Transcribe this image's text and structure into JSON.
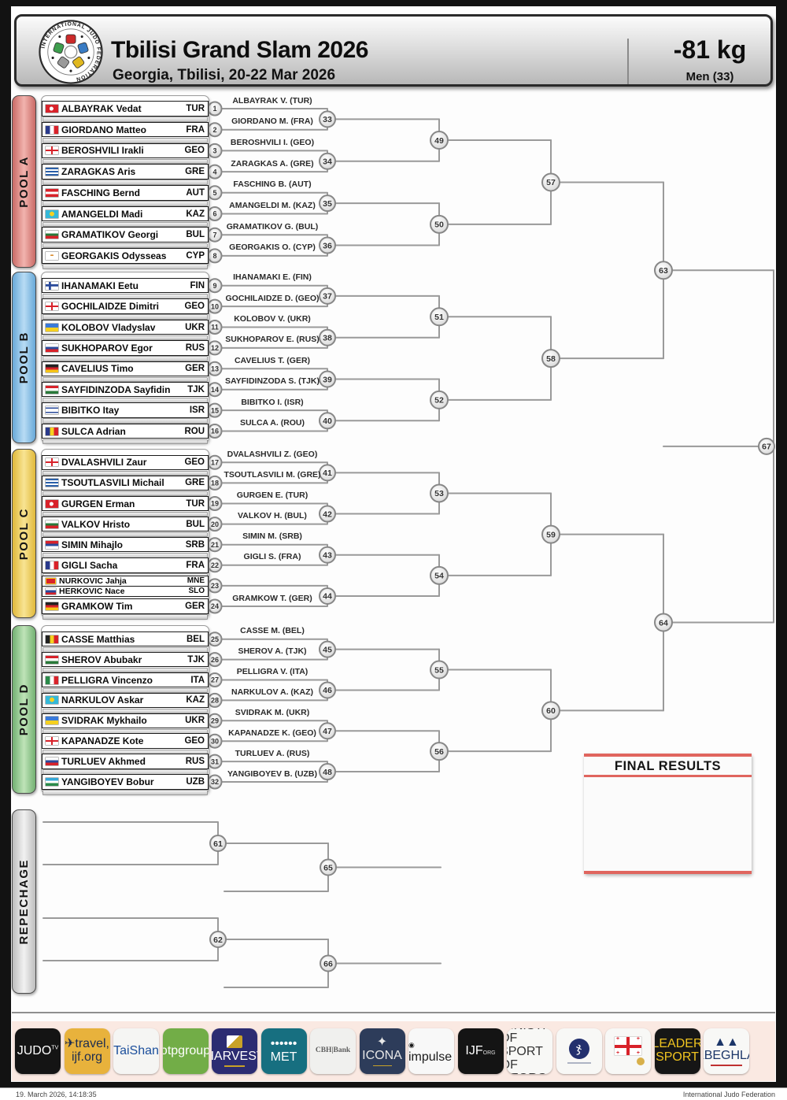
{
  "header": {
    "title": "Tbilisi Grand Slam 2026",
    "subtitle": "Georgia, Tbilisi, 20-22 Mar 2026",
    "weight": "-81 kg",
    "category": "Men (33)",
    "logo_text": "INTERNATIONAL  JUDO  FEDERATION"
  },
  "pools": [
    {
      "id": "A",
      "label": "POOL A",
      "color": "#c96a66",
      "color_light": "#f2b3ae",
      "entries": [
        {
          "seed": 1,
          "athletes": [
            {
              "name": "ALBAYRAK Vedat",
              "country": "TUR"
            }
          ],
          "winner_label": "ALBAYRAK V. (TUR)"
        },
        {
          "seed": 2,
          "athletes": [
            {
              "name": "GIORDANO Matteo",
              "country": "FRA"
            }
          ],
          "winner_label": "GIORDANO M. (FRA)"
        },
        {
          "seed": 3,
          "athletes": [
            {
              "name": "BEROSHVILI Irakli",
              "country": "GEO"
            }
          ],
          "winner_label": "BEROSHVILI I. (GEO)"
        },
        {
          "seed": 4,
          "athletes": [
            {
              "name": "ZARAGKAS Aris",
              "country": "GRE"
            }
          ],
          "winner_label": "ZARAGKAS A. (GRE)"
        },
        {
          "seed": 5,
          "athletes": [
            {
              "name": "FASCHING Bernd",
              "country": "AUT"
            }
          ],
          "winner_label": "FASCHING B. (AUT)"
        },
        {
          "seed": 6,
          "athletes": [
            {
              "name": "AMANGELDI Madi",
              "country": "KAZ"
            }
          ],
          "winner_label": "AMANGELDI M. (KAZ)"
        },
        {
          "seed": 7,
          "athletes": [
            {
              "name": "GRAMATIKOV Georgi",
              "country": "BUL"
            }
          ],
          "winner_label": "GRAMATIKOV G. (BUL)"
        },
        {
          "seed": 8,
          "athletes": [
            {
              "name": "GEORGAKIS Odysseas",
              "country": "CYP"
            }
          ],
          "winner_label": "GEORGAKIS O. (CYP)"
        }
      ]
    },
    {
      "id": "B",
      "label": "POOL B",
      "color": "#68a8d8",
      "color_light": "#b8dcf4",
      "entries": [
        {
          "seed": 9,
          "athletes": [
            {
              "name": "IHANAMAKI Eetu",
              "country": "FIN"
            }
          ],
          "winner_label": "IHANAMAKI E. (FIN)"
        },
        {
          "seed": 10,
          "athletes": [
            {
              "name": "GOCHILAIDZE Dimitri",
              "country": "GEO"
            }
          ],
          "winner_label": "GOCHILAIDZE D. (GEO)"
        },
        {
          "seed": 11,
          "athletes": [
            {
              "name": "KOLOBOV Vladyslav",
              "country": "UKR"
            }
          ],
          "winner_label": "KOLOBOV V. (UKR)"
        },
        {
          "seed": 12,
          "athletes": [
            {
              "name": "SUKHOPAROV Egor",
              "country": "RUS"
            }
          ],
          "winner_label": "SUKHOPAROV E. (RUS)"
        },
        {
          "seed": 13,
          "athletes": [
            {
              "name": "CAVELIUS Timo",
              "country": "GER"
            }
          ],
          "winner_label": "CAVELIUS T. (GER)"
        },
        {
          "seed": 14,
          "athletes": [
            {
              "name": "SAYFIDINZODA Sayfidin",
              "country": "TJK"
            }
          ],
          "winner_label": "SAYFIDINZODA S. (TJK)"
        },
        {
          "seed": 15,
          "athletes": [
            {
              "name": "BIBITKO Itay",
              "country": "ISR"
            }
          ],
          "winner_label": "BIBITKO I. (ISR)"
        },
        {
          "seed": 16,
          "athletes": [
            {
              "name": "SULCA Adrian",
              "country": "ROU"
            }
          ],
          "winner_label": "SULCA A. (ROU)"
        }
      ]
    },
    {
      "id": "C",
      "label": "POOL C",
      "color": "#e0b83a",
      "color_light": "#f8e493",
      "entries": [
        {
          "seed": 17,
          "athletes": [
            {
              "name": "DVALASHVILI Zaur",
              "country": "GEO"
            }
          ],
          "winner_label": "DVALASHVILI Z. (GEO)"
        },
        {
          "seed": 18,
          "athletes": [
            {
              "name": "TSOUTLASVILI Michail",
              "country": "GRE"
            }
          ],
          "winner_label": "TSOUTLASVILI M. (GRE)"
        },
        {
          "seed": 19,
          "athletes": [
            {
              "name": "GURGEN Erman",
              "country": "TUR"
            }
          ],
          "winner_label": "GURGEN E. (TUR)"
        },
        {
          "seed": 20,
          "athletes": [
            {
              "name": "VALKOV Hristo",
              "country": "BUL"
            }
          ],
          "winner_label": "VALKOV H. (BUL)"
        },
        {
          "seed": 21,
          "athletes": [
            {
              "name": "SIMIN Mihajlo",
              "country": "SRB"
            }
          ],
          "winner_label": "SIMIN M. (SRB)"
        },
        {
          "seed": 22,
          "athletes": [
            {
              "name": "GIGLI Sacha",
              "country": "FRA"
            }
          ],
          "winner_label": "GIGLI S. (FRA)"
        },
        {
          "seed": 23,
          "athletes": [
            {
              "name": "NURKOVIC Jahja",
              "country": "MNE"
            },
            {
              "name": "HERKOVIC Nace",
              "country": "SLO"
            }
          ],
          "winner_label": ""
        },
        {
          "seed": 24,
          "athletes": [
            {
              "name": "GRAMKOW Tim",
              "country": "GER"
            }
          ],
          "winner_label": "GRAMKOW T. (GER)"
        }
      ]
    },
    {
      "id": "D",
      "label": "POOL D",
      "color": "#72b072",
      "color_light": "#bfe4b8",
      "entries": [
        {
          "seed": 25,
          "athletes": [
            {
              "name": "CASSE Matthias",
              "country": "BEL"
            }
          ],
          "winner_label": "CASSE M. (BEL)"
        },
        {
          "seed": 26,
          "athletes": [
            {
              "name": "SHEROV Abubakr",
              "country": "TJK"
            }
          ],
          "winner_label": "SHEROV A. (TJK)"
        },
        {
          "seed": 27,
          "athletes": [
            {
              "name": "PELLIGRA Vincenzo",
              "country": "ITA"
            }
          ],
          "winner_label": "PELLIGRA V. (ITA)"
        },
        {
          "seed": 28,
          "athletes": [
            {
              "name": "NARKULOV Askar",
              "country": "KAZ"
            }
          ],
          "winner_label": "NARKULOV A. (KAZ)"
        },
        {
          "seed": 29,
          "athletes": [
            {
              "name": "SVIDRAK Mykhailo",
              "country": "UKR"
            }
          ],
          "winner_label": "SVIDRAK M. (UKR)"
        },
        {
          "seed": 30,
          "athletes": [
            {
              "name": "KAPANADZE Kote",
              "country": "GEO"
            }
          ],
          "winner_label": "KAPANADZE K. (GEO)"
        },
        {
          "seed": 31,
          "athletes": [
            {
              "name": "TURLUEV Akhmed",
              "country": "RUS"
            }
          ],
          "winner_label": "TURLUEV A. (RUS)"
        },
        {
          "seed": 32,
          "athletes": [
            {
              "name": "YANGIBOYEV Bobur",
              "country": "UZB"
            }
          ],
          "winner_label": "YANGIBOYEV B. (UZB)"
        }
      ]
    }
  ],
  "bracket": {
    "round1": [
      [
        33,
        34,
        35,
        36
      ],
      [
        37,
        38,
        39,
        40
      ],
      [
        41,
        42,
        43,
        44
      ],
      [
        45,
        46,
        47,
        48
      ]
    ],
    "round2": [
      [
        49,
        50
      ],
      [
        51,
        52
      ],
      [
        53,
        54
      ],
      [
        55,
        56
      ]
    ],
    "quarterfinals": [
      57,
      58,
      59,
      60
    ],
    "semifinals": [
      63,
      64
    ],
    "final": 67,
    "repechage": [
      [
        61,
        65
      ],
      [
        62,
        66
      ]
    ]
  },
  "repechage_label": "REPECHAGE",
  "final_results": {
    "title": "FINAL RESULTS"
  },
  "sponsors": [
    {
      "id": "judotv",
      "text": "JUDO",
      "sup": "TV",
      "bg": "#141414",
      "fg": "#ffffff"
    },
    {
      "id": "travel",
      "line1": "✈travel,",
      "line2": "ijf.org",
      "bg": "#e8b23c",
      "fg": "#1d2d50"
    },
    {
      "id": "taishan",
      "text": "TaiShan",
      "bg": "#f5f5f3",
      "fg": "#1b4e9b"
    },
    {
      "id": "otp",
      "text": "otpgroup",
      "bg": "#72ad47",
      "fg": "#ffffff"
    },
    {
      "id": "harvest",
      "text": "HARVEST",
      "bg": "#2c2c72",
      "fg": "#ffffff"
    },
    {
      "id": "met",
      "text": "MET",
      "bg": "#176f80",
      "fg": "#ffffff"
    },
    {
      "id": "cbh",
      "text": "CBH|Bank",
      "bg": "#f0f0ee",
      "fg": "#5c5c5c"
    },
    {
      "id": "icona",
      "text": "ICONA",
      "bg": "#2d3c5a",
      "fg": "#e8e8e8"
    },
    {
      "id": "impulse",
      "text": "impulse",
      "bg": "#f8f8f8",
      "fg": "#1a1a1a"
    },
    {
      "id": "ijforg",
      "text": "IJF",
      "sub": "ORG",
      "bg": "#141414",
      "fg": "#ffffff"
    },
    {
      "id": "ministry",
      "line1": "MINISTRY OF SPORT",
      "line2": "OF GEORGIA",
      "bg": "#f8f8f6",
      "fg": "#333333"
    },
    {
      "id": "gjf",
      "text": "ჯ",
      "bg": "#f8f8f6",
      "fg": "#23306e"
    },
    {
      "id": "geoflag",
      "text": "",
      "bg": "#f8f8f6",
      "fg": "#d8222a"
    },
    {
      "id": "leader",
      "line1": "LEADER",
      "line2": "SPORT",
      "bg": "#161616",
      "fg": "#f0c420"
    },
    {
      "id": "nabeghlavi",
      "text": "NABEGHLAVI",
      "bg": "#f8f8f6",
      "fg": "#1c3668"
    }
  ],
  "footer": {
    "date": "19. March 2026, 14:18:35",
    "org": "International Judo Federation"
  }
}
